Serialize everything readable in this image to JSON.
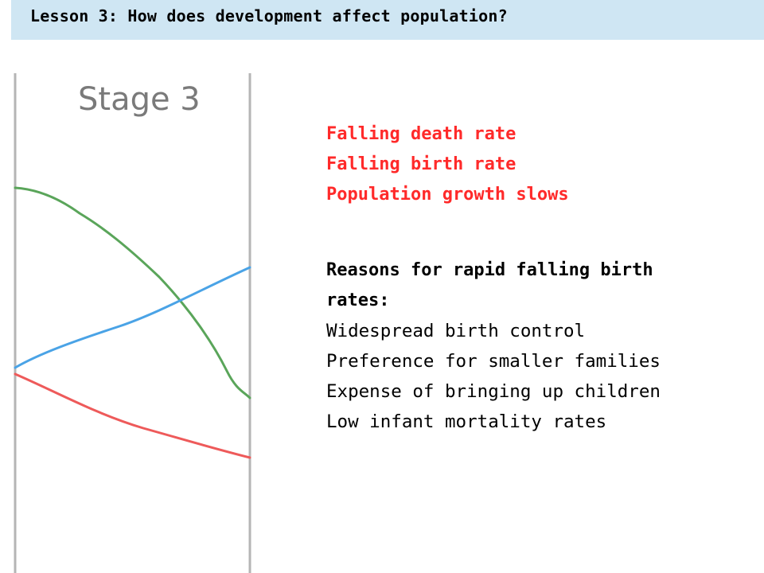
{
  "header": {
    "title": "Lesson 3: How does development affect population?"
  },
  "chart": {
    "stage_label": "Stage 3",
    "colors": {
      "death_rate": "#ee5a5a",
      "birth_rate": "#5aa55a",
      "population": "#4aa3e6",
      "axis": "#b5b5b5"
    }
  },
  "features": {
    "items": [
      "Falling death rate",
      "Falling birth rate",
      "Population growth slows"
    ],
    "color": "#ff2a2a"
  },
  "reasons": {
    "heading": "Reasons for rapid falling birth rates:",
    "items": [
      "Widespread birth control",
      "Preference for smaller families",
      "Expense of bringing up children",
      "Low infant mortality rates"
    ]
  }
}
